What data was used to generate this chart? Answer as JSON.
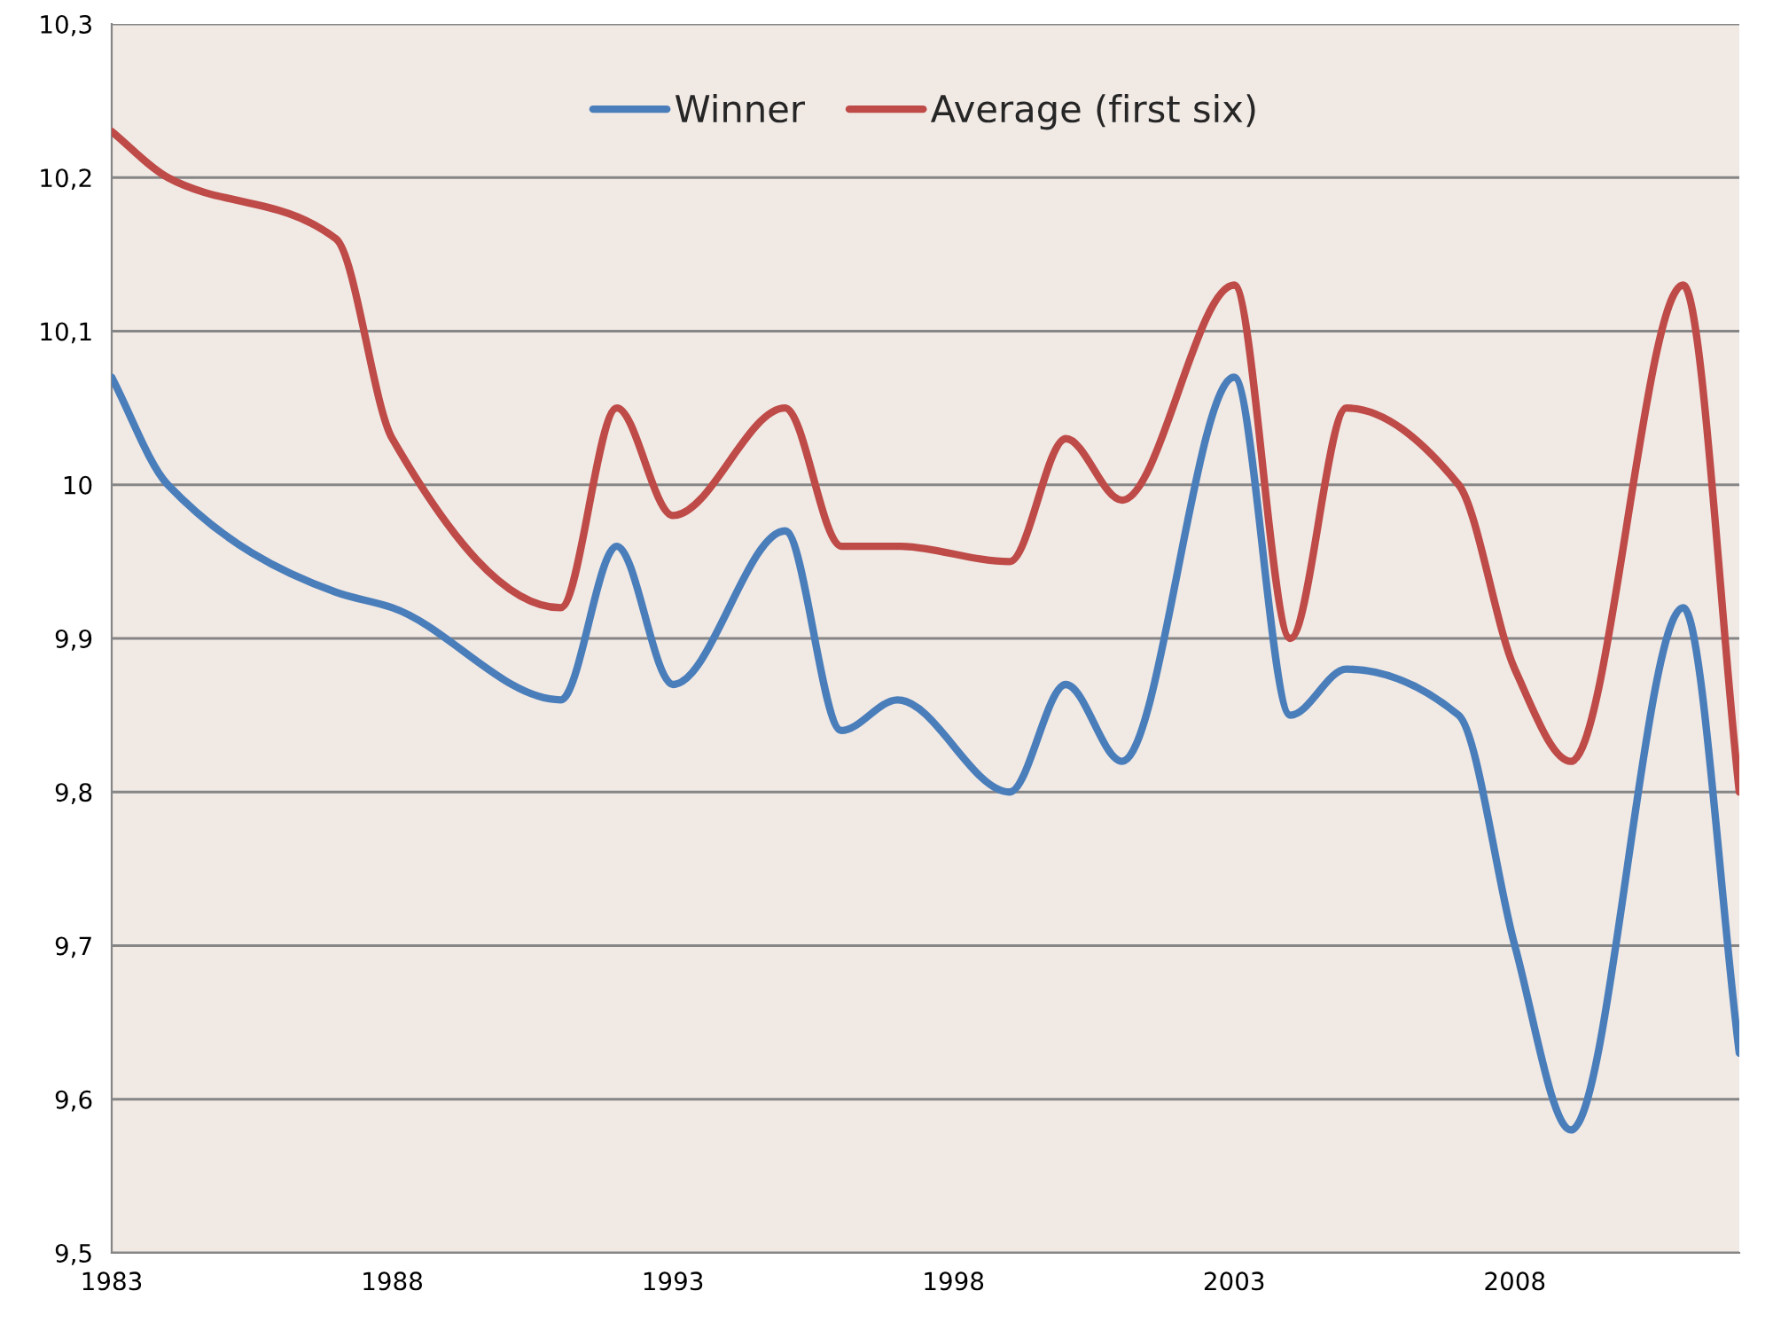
{
  "chart_data": {
    "type": "line",
    "x": [
      1983,
      1984,
      1987,
      1988,
      1991,
      1992,
      1993,
      1995,
      1996,
      1997,
      1999,
      2000,
      2001,
      2003,
      2004,
      2005,
      2007,
      2008,
      2009,
      2011,
      2012
    ],
    "series": [
      {
        "name": "Winner",
        "color": "#4a7ebb",
        "values": [
          10.07,
          10.0,
          9.93,
          9.92,
          9.86,
          9.96,
          9.87,
          9.97,
          9.84,
          9.86,
          9.8,
          9.87,
          9.82,
          10.07,
          9.85,
          9.88,
          9.85,
          9.7,
          9.58,
          9.92,
          9.63
        ]
      },
      {
        "name": "Average (first six)",
        "color": "#be4b48",
        "values": [
          10.23,
          10.2,
          10.16,
          10.03,
          9.92,
          10.05,
          9.98,
          10.05,
          9.96,
          9.96,
          9.95,
          10.03,
          9.99,
          10.13,
          9.9,
          10.05,
          10.0,
          9.88,
          9.82,
          10.13,
          9.8
        ]
      }
    ],
    "xlim": [
      1983,
      2012
    ],
    "xticks": [
      1983,
      1988,
      1993,
      1998,
      2003,
      2008
    ],
    "ylim": [
      9.5,
      10.3
    ],
    "yticks": [
      {
        "value": 9.5,
        "label": "9,5"
      },
      {
        "value": 9.6,
        "label": "9,6"
      },
      {
        "value": 9.7,
        "label": "9,7"
      },
      {
        "value": 9.8,
        "label": "9,8"
      },
      {
        "value": 9.9,
        "label": "9,9"
      },
      {
        "value": 10.0,
        "label": "10"
      },
      {
        "value": 10.1,
        "label": "10,1"
      },
      {
        "value": 10.2,
        "label": "10,2"
      },
      {
        "value": 10.3,
        "label": "10,3"
      }
    ],
    "grid": "y",
    "legend": "top",
    "marker": "none",
    "line_style": "solid"
  }
}
